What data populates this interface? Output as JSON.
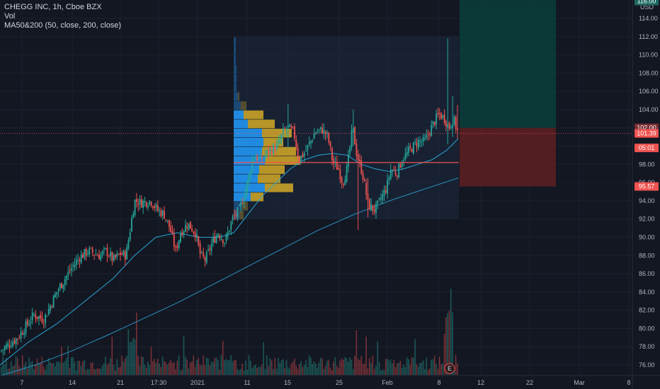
{
  "legend": {
    "symbol": "CHEGG INC, 1h, Cboe BZX",
    "vol": "Vol",
    "ma": "MA50&200 (50, close, 200, close)"
  },
  "colors": {
    "background": "#131722",
    "grid": "#1e222d",
    "up": "#26a69a",
    "down": "#ef5350",
    "ma50": "#2aa6d6",
    "ma200": "#2a8fbd",
    "profit_zone": "#0b3d3a",
    "loss_zone": "#5a1f22",
    "vp_up": "#2196f3",
    "vp_down": "#c9a227",
    "poc": "#ef5350",
    "price_line": "#ef5350"
  },
  "chart_data": {
    "type": "candlestick",
    "title": "CHEGG INC, 1h, Cboe BZX",
    "y_axis": {
      "currency": "USD",
      "ticks": [
        76,
        78,
        80,
        82,
        84,
        86,
        88,
        90,
        92,
        94,
        96,
        98,
        100,
        102,
        104,
        106,
        108,
        110,
        112,
        114
      ],
      "range": [
        74.8,
        116.2
      ]
    },
    "x_axis": {
      "ticks": [
        "7",
        "14",
        "21",
        "17:30",
        "2021",
        "11",
        "15",
        "25",
        "Feb",
        "8",
        "12",
        "22",
        "Mar",
        "8"
      ]
    },
    "price_labels": {
      "top": "116.00",
      "target": "102.00",
      "last": "101.39",
      "countdown": "05:01",
      "stop": "95.57"
    },
    "path_keypoints": [
      [
        0,
        77.5
      ],
      [
        25,
        79.0
      ],
      [
        48,
        81.5
      ],
      [
        62,
        81.0
      ],
      [
        80,
        84.0
      ],
      [
        100,
        86.5
      ],
      [
        112,
        87.8
      ],
      [
        125,
        88.5
      ],
      [
        140,
        88.0
      ],
      [
        150,
        88.5
      ],
      [
        160,
        87.5
      ],
      [
        170,
        88.2
      ],
      [
        178,
        88.0
      ],
      [
        190,
        94.0
      ],
      [
        200,
        93.8
      ],
      [
        213,
        94.0
      ],
      [
        222,
        93.0
      ],
      [
        232,
        92.5
      ],
      [
        240,
        91.0
      ],
      [
        248,
        88.5
      ],
      [
        255,
        90.5
      ],
      [
        265,
        91.5
      ],
      [
        276,
        90.5
      ],
      [
        283,
        88.0
      ],
      [
        290,
        87.5
      ],
      [
        300,
        89.5
      ],
      [
        308,
        90.5
      ],
      [
        318,
        89.5
      ],
      [
        328,
        92.0
      ],
      [
        338,
        93.0
      ],
      [
        348,
        95.5
      ],
      [
        358,
        99.0
      ],
      [
        368,
        98.5
      ],
      [
        380,
        99.5
      ],
      [
        392,
        100.0
      ],
      [
        400,
        101.5
      ],
      [
        406,
        102.0
      ],
      [
        415,
        101.5
      ],
      [
        422,
        98.5
      ],
      [
        432,
        99.5
      ],
      [
        445,
        101.5
      ],
      [
        455,
        101.8
      ],
      [
        463,
        101.0
      ],
      [
        470,
        98.2
      ],
      [
        478,
        97.5
      ],
      [
        484,
        96.0
      ],
      [
        490,
        97.5
      ],
      [
        498,
        102.0
      ],
      [
        504,
        99.0
      ],
      [
        512,
        97.0
      ],
      [
        520,
        93.5
      ],
      [
        530,
        93.0
      ],
      [
        540,
        94.5
      ],
      [
        546,
        95.5
      ],
      [
        552,
        97.5
      ],
      [
        560,
        97.0
      ],
      [
        568,
        98.5
      ],
      [
        578,
        99.5
      ],
      [
        590,
        100.5
      ],
      [
        600,
        100.5
      ],
      [
        612,
        102.5
      ],
      [
        620,
        103.5
      ],
      [
        628,
        103.0
      ],
      [
        634,
        102.0
      ],
      [
        640,
        103.0
      ],
      [
        647,
        101.4
      ]
    ],
    "spikes": [
      {
        "x": 406,
        "high": 104.6,
        "low": 99.8
      },
      {
        "x": 498,
        "high": 104.0,
        "low": 100.0
      },
      {
        "x": 506,
        "high": 97.5,
        "low": 90.8
      },
      {
        "x": 519,
        "high": 96.5,
        "low": 92.2
      },
      {
        "x": 633,
        "high": 111.8,
        "low": 100.2
      },
      {
        "x": 638,
        "high": 105.5,
        "low": 101.0
      },
      {
        "x": 645,
        "high": 104.5,
        "low": 100.8
      }
    ],
    "ma50": [
      [
        0,
        76.0
      ],
      [
        40,
        78.5
      ],
      [
        80,
        80.5
      ],
      [
        120,
        83.0
      ],
      [
        160,
        85.5
      ],
      [
        190,
        88.0
      ],
      [
        220,
        90.0
      ],
      [
        250,
        90.5
      ],
      [
        280,
        90.0
      ],
      [
        310,
        90.0
      ],
      [
        330,
        90.5
      ],
      [
        350,
        92.5
      ],
      [
        370,
        94.5
      ],
      [
        390,
        96.0
      ],
      [
        410,
        97.5
      ],
      [
        430,
        98.5
      ],
      [
        450,
        99.0
      ],
      [
        470,
        99.2
      ],
      [
        490,
        99.0
      ],
      [
        510,
        98.0
      ],
      [
        530,
        97.5
      ],
      [
        550,
        97.2
      ],
      [
        570,
        97.5
      ],
      [
        590,
        98.0
      ],
      [
        610,
        98.5
      ],
      [
        630,
        99.5
      ],
      [
        647,
        100.8
      ]
    ],
    "ma200": [
      [
        0,
        74.8
      ],
      [
        50,
        76.0
      ],
      [
        100,
        77.5
      ],
      [
        150,
        79.2
      ],
      [
        200,
        81.0
      ],
      [
        250,
        82.8
      ],
      [
        300,
        84.8
      ],
      [
        350,
        86.8
      ],
      [
        400,
        88.8
      ],
      [
        450,
        90.8
      ],
      [
        500,
        92.5
      ],
      [
        550,
        94.0
      ],
      [
        600,
        95.3
      ],
      [
        647,
        96.5
      ]
    ],
    "volume_profile": {
      "range": [
        92.0,
        112.0
      ],
      "poc": 98.2,
      "rows": [
        {
          "price": 111.4,
          "up": 3,
          "down": 0
        },
        {
          "price": 110.4,
          "up": 3,
          "down": 0
        },
        {
          "price": 109.4,
          "up": 3,
          "down": 0
        },
        {
          "price": 108.4,
          "up": 4,
          "down": 0
        },
        {
          "price": 107.4,
          "up": 4,
          "down": 0
        },
        {
          "price": 106.4,
          "up": 4,
          "down": 0
        },
        {
          "price": 105.4,
          "up": 6,
          "down": 2
        },
        {
          "price": 104.4,
          "up": 10,
          "down": 8
        },
        {
          "price": 103.4,
          "up": 14,
          "down": 28
        },
        {
          "price": 102.4,
          "up": 20,
          "down": 38
        },
        {
          "price": 101.4,
          "up": 40,
          "down": 42
        },
        {
          "price": 100.4,
          "up": 42,
          "down": 28
        },
        {
          "price": 99.4,
          "up": 40,
          "down": 48
        },
        {
          "price": 98.4,
          "up": 44,
          "down": 50
        },
        {
          "price": 97.4,
          "up": 36,
          "down": 36
        },
        {
          "price": 96.4,
          "up": 34,
          "down": 32
        },
        {
          "price": 95.4,
          "up": 44,
          "down": 40
        },
        {
          "price": 94.4,
          "up": 24,
          "down": 18
        },
        {
          "price": 93.4,
          "up": 12,
          "down": 8
        },
        {
          "price": 92.4,
          "up": 8,
          "down": 6
        }
      ]
    },
    "position": {
      "entry": 102.0,
      "target": 116.0,
      "stop": 95.57
    },
    "volume_peak_marker": "E"
  }
}
